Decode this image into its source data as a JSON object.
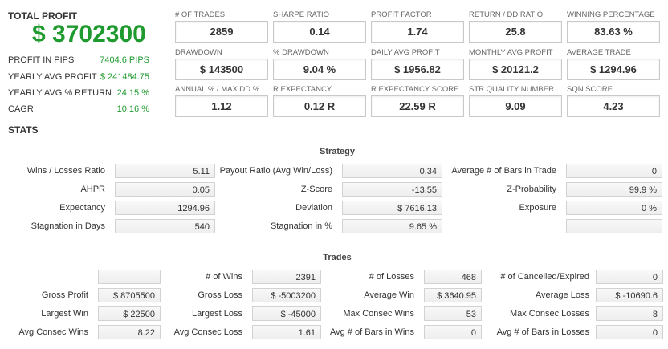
{
  "summary": {
    "title": "TOTAL PROFIT",
    "total": "$ 3702300",
    "rows": [
      {
        "label": "PROFIT IN PIPS",
        "value": "7404.6 PIPS"
      },
      {
        "label": "YEARLY AVG PROFIT",
        "value": "$ 241484.75"
      },
      {
        "label": "YEARLY AVG % RETURN",
        "value": "24.15 %"
      },
      {
        "label": "CAGR",
        "value": "10.16 %"
      }
    ]
  },
  "metrics": [
    {
      "label": "# OF TRADES",
      "value": "2859"
    },
    {
      "label": "SHARPE RATIO",
      "value": "0.14"
    },
    {
      "label": "PROFIT FACTOR",
      "value": "1.74"
    },
    {
      "label": "RETURN / DD RATIO",
      "value": "25.8"
    },
    {
      "label": "WINNING PERCENTAGE",
      "value": "83.63 %"
    },
    {
      "label": "DRAWDOWN",
      "value": "$ 143500"
    },
    {
      "label": "% DRAWDOWN",
      "value": "9.04 %"
    },
    {
      "label": "DAILY AVG PROFIT",
      "value": "$ 1956.82"
    },
    {
      "label": "MONTHLY AVG PROFIT",
      "value": "$ 20121.2"
    },
    {
      "label": "AVERAGE TRADE",
      "value": "$ 1294.96"
    },
    {
      "label": "ANNUAL % / MAX DD %",
      "value": "1.12"
    },
    {
      "label": "R EXPECTANCY",
      "value": "0.12 R"
    },
    {
      "label": "R EXPECTANCY SCORE",
      "value": "22.59 R"
    },
    {
      "label": "STR QUALITY NUMBER",
      "value": "9.09"
    },
    {
      "label": "SQN SCORE",
      "value": "4.23"
    }
  ],
  "stats": {
    "title": "STATS",
    "strategy": {
      "title": "Strategy",
      "rows": [
        [
          {
            "label": "Wins / Losses Ratio",
            "value": "5.11"
          },
          {
            "label": "Payout Ratio (Avg Win/Loss)",
            "value": "0.34"
          },
          {
            "label": "Average # of Bars in Trade",
            "value": "0"
          }
        ],
        [
          {
            "label": "AHPR",
            "value": "0.05"
          },
          {
            "label": "Z-Score",
            "value": "-13.55"
          },
          {
            "label": "Z-Probability",
            "value": "99.9 %"
          }
        ],
        [
          {
            "label": "Expectancy",
            "value": "1294.96"
          },
          {
            "label": "Deviation",
            "value": "$ 7616.13"
          },
          {
            "label": "Exposure",
            "value": "0 %"
          }
        ],
        [
          {
            "label": "Stagnation in Days",
            "value": "540"
          },
          {
            "label": "Stagnation in %",
            "value": "9.65 %"
          },
          {
            "label": "",
            "value": ""
          }
        ]
      ]
    },
    "trades": {
      "title": "Trades",
      "rows": [
        [
          {
            "label": "",
            "value": ""
          },
          {
            "label": "# of Wins",
            "value": "2391"
          },
          {
            "label": "# of Losses",
            "value": "468"
          },
          {
            "label": "# of Cancelled/Expired",
            "value": "0"
          }
        ],
        [
          {
            "label": "Gross Profit",
            "value": "$ 8705500"
          },
          {
            "label": "Gross Loss",
            "value": "$ -5003200"
          },
          {
            "label": "Average Win",
            "value": "$ 3640.95"
          },
          {
            "label": "Average Loss",
            "value": "$ -10690.6"
          }
        ],
        [
          {
            "label": "Largest Win",
            "value": "$ 22500"
          },
          {
            "label": "Largest Loss",
            "value": "$ -45000"
          },
          {
            "label": "Max Consec Wins",
            "value": "53"
          },
          {
            "label": "Max Consec Losses",
            "value": "8"
          }
        ],
        [
          {
            "label": "Avg Consec Wins",
            "value": "8.22"
          },
          {
            "label": "Avg Consec Loss",
            "value": "1.61"
          },
          {
            "label": "Avg # of Bars in Wins",
            "value": "0"
          },
          {
            "label": "Avg # of Bars in Losses",
            "value": "0"
          }
        ]
      ]
    }
  }
}
